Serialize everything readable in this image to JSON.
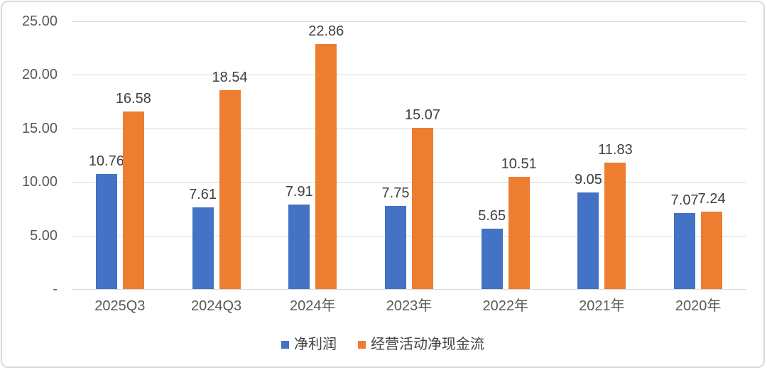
{
  "chart_data": {
    "type": "bar",
    "title": "",
    "categories": [
      "2025Q3",
      "2024Q3",
      "2024年",
      "2023年",
      "2022年",
      "2021年",
      "2020年"
    ],
    "series": [
      {
        "id": "net-profit",
        "name": "净利润",
        "color": "#4472C4",
        "values": [
          10.76,
          7.61,
          7.91,
          7.75,
          5.65,
          9.05,
          7.07
        ]
      },
      {
        "id": "operating-cash-flow",
        "name": "经营活动净现金流",
        "color": "#ED7D31",
        "values": [
          16.58,
          18.54,
          22.86,
          15.07,
          10.51,
          11.83,
          7.24
        ]
      }
    ],
    "y_axis": {
      "tick_labels": [
        "25.00",
        "20.00",
        "15.00",
        "10.00",
        "5.00",
        "-"
      ],
      "tick_values": [
        25,
        20,
        15,
        10,
        5,
        0
      ],
      "min": 0,
      "max": 25,
      "grid": true
    },
    "xlabel": "",
    "ylabel": "",
    "data_labels_shown": true,
    "legend_position": "bottom"
  },
  "styles": {
    "series_blue": "#4472C4",
    "series_orange": "#ED7D31"
  }
}
